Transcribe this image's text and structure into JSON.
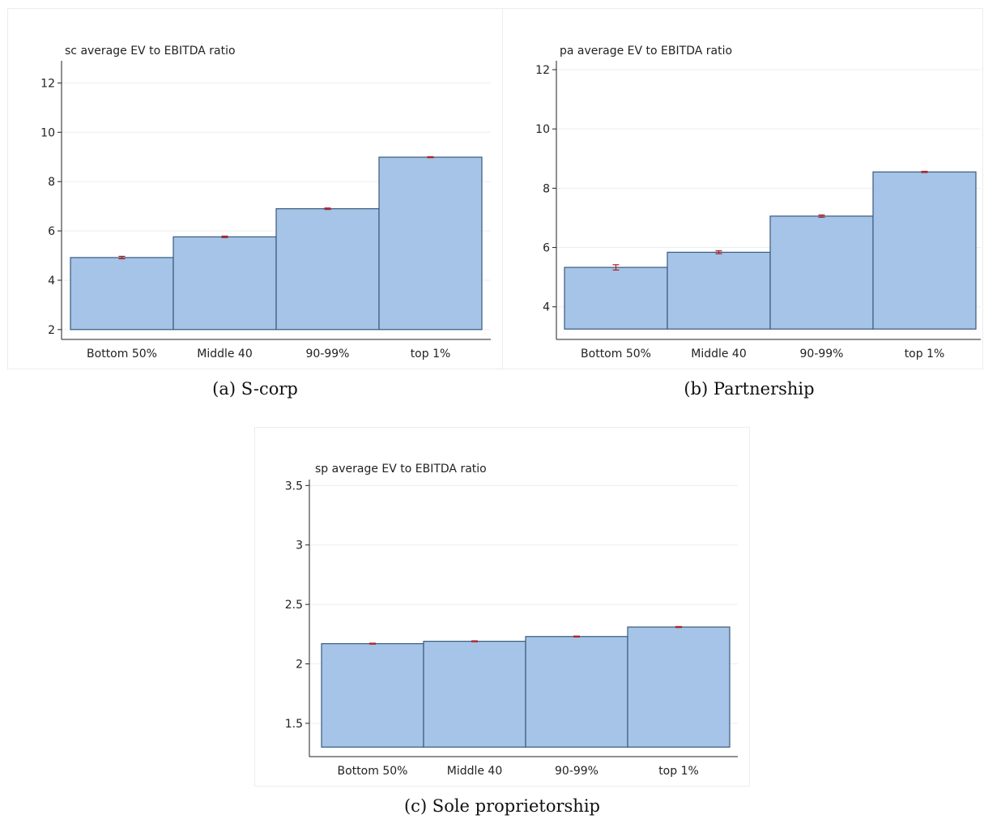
{
  "figures": [
    {
      "caption": "(a) S-corp",
      "chart_data": {
        "type": "bar",
        "title": "sc average EV to EBITDA ratio",
        "xlabel": "",
        "ylabel": "",
        "categories": [
          "Bottom 50%",
          "Middle 40",
          "90-99%",
          "top 1%"
        ],
        "values": [
          4.92,
          5.76,
          6.9,
          8.99
        ],
        "error": [
          0.05,
          0.03,
          0.03,
          0.02
        ],
        "baseline": 2.0,
        "ylim": [
          1.6,
          12.9
        ],
        "yticks": [
          2,
          4,
          6,
          8,
          10,
          12
        ],
        "ytick_labels": [
          "2",
          "4",
          "6",
          "8",
          "10",
          "12"
        ],
        "grid": true,
        "colors": {
          "bar": "#a6c3e8",
          "edge": "#3a5a7c",
          "error": "#b22222"
        }
      }
    },
    {
      "caption": "(b) Partnership",
      "chart_data": {
        "type": "bar",
        "title": "pa average EV to EBITDA ratio",
        "xlabel": "",
        "ylabel": "",
        "categories": [
          "Bottom 50%",
          "Middle 40",
          "90-99%",
          "top 1%"
        ],
        "values": [
          5.33,
          5.84,
          7.06,
          8.55
        ],
        "error": [
          0.09,
          0.05,
          0.04,
          0.02
        ],
        "baseline": 3.25,
        "ylim": [
          2.9,
          12.3
        ],
        "yticks": [
          4,
          6,
          8,
          10,
          12
        ],
        "ytick_labels": [
          "4",
          "6",
          "8",
          "10",
          "12"
        ],
        "grid": true,
        "colors": {
          "bar": "#a6c3e8",
          "edge": "#3a5a7c",
          "error": "#b22222"
        }
      }
    },
    {
      "caption": "(c) Sole proprietorship",
      "chart_data": {
        "type": "bar",
        "title": "sp average EV to EBITDA ratio",
        "xlabel": "",
        "ylabel": "",
        "categories": [
          "Bottom 50%",
          "Middle 40",
          "90-99%",
          "top 1%"
        ],
        "values": [
          2.17,
          2.19,
          2.23,
          2.31
        ],
        "error": [
          0.004,
          0.004,
          0.004,
          0.004
        ],
        "baseline": 1.3,
        "ylim": [
          1.22,
          3.55
        ],
        "yticks": [
          1.5,
          2,
          2.5,
          3,
          3.5
        ],
        "ytick_labels": [
          "1.5",
          "2",
          "2.5",
          "3",
          "3.5"
        ],
        "grid": true,
        "colors": {
          "bar": "#a6c3e8",
          "edge": "#3a5a7c",
          "error": "#b22222"
        }
      }
    }
  ]
}
